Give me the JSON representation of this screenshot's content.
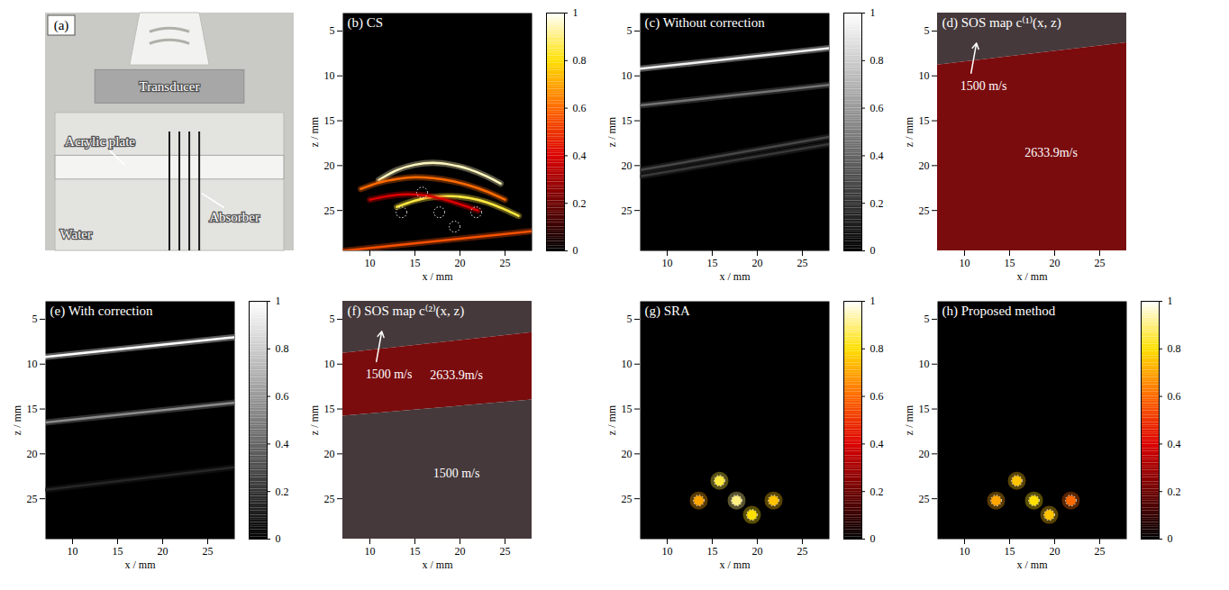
{
  "chart_data": [
    {
      "type": "photo",
      "label": "(a)",
      "annotations": [
        "Transducer",
        "Acrylic plate",
        "Water",
        "Absorber"
      ]
    },
    {
      "type": "heatmap",
      "label": "(b)",
      "title": "CS",
      "x_label": "x / mm",
      "y_label": "z / mm",
      "xlim": [
        7,
        28
      ],
      "xticks": [
        10,
        15,
        20,
        25
      ],
      "ylim": [
        3,
        29.5
      ],
      "yticks": [
        5,
        10,
        15,
        20,
        25
      ],
      "traces": [
        {
          "x": [
            11,
            13,
            15,
            17,
            19,
            21,
            23,
            24.5
          ],
          "z": [
            21.6,
            20.5,
            19.9,
            19.7,
            19.9,
            20.4,
            21.2,
            22
          ],
          "intensity": 0.95
        },
        {
          "x": [
            9,
            11,
            13,
            15,
            17,
            19,
            21,
            23,
            25
          ],
          "z": [
            22.6,
            21.9,
            21.5,
            21.3,
            21.4,
            21.7,
            22.2,
            22.9,
            23.8
          ],
          "intensity": 0.6
        },
        {
          "x": [
            13,
            15,
            17,
            19,
            21,
            23,
            25,
            26.5
          ],
          "z": [
            24.6,
            23.9,
            23.5,
            23.4,
            23.6,
            24.1,
            24.9,
            25.6
          ],
          "intensity": 0.85
        },
        {
          "x": [
            10,
            12,
            14,
            16,
            18,
            20,
            22
          ],
          "z": [
            23.8,
            23.4,
            23.2,
            23.3,
            23.7,
            24.3,
            25
          ],
          "intensity": 0.4
        },
        {
          "x": [
            7,
            28
          ],
          "z": [
            29.5,
            27.3
          ],
          "intensity": 0.55
        }
      ],
      "targets": {
        "x": [
          15.8,
          13.5,
          17.7,
          21.8,
          19.4
        ],
        "z": [
          23.0,
          25.2,
          25.2,
          25.2,
          26.8
        ]
      },
      "colorbar": {
        "range": [
          0,
          1
        ],
        "ticks": [
          0,
          0.2,
          0.4,
          0.6,
          0.8,
          1
        ],
        "colors": [
          "#000000",
          "#6e0000",
          "#dc0000",
          "#ff6a00",
          "#ffe000",
          "#ffffff"
        ]
      }
    },
    {
      "type": "heatmap",
      "label": "(c)",
      "title": "Without correction",
      "x_label": "x / mm",
      "y_label": "z / mm",
      "xlim": [
        7,
        28
      ],
      "xticks": [
        10,
        15,
        20,
        25
      ],
      "ylim": [
        3,
        29.5
      ],
      "yticks": [
        5,
        10,
        15,
        20,
        25
      ],
      "traces": [
        {
          "x": [
            7,
            28
          ],
          "z": [
            9.2,
            6.9
          ],
          "intensity": 0.95
        },
        {
          "x": [
            7,
            28
          ],
          "z": [
            13.3,
            11.0
          ],
          "intensity": 0.45
        },
        {
          "x": [
            7,
            28
          ],
          "z": [
            20.5,
            16.8
          ],
          "intensity": 0.28
        },
        {
          "x": [
            7,
            28
          ],
          "z": [
            21.2,
            17.6
          ],
          "intensity": 0.22
        }
      ],
      "colorbar": {
        "range": [
          0,
          1
        ],
        "ticks": [
          0,
          0.2,
          0.4,
          0.6,
          0.8,
          1
        ],
        "colors": [
          "#000000",
          "#ffffff"
        ]
      }
    },
    {
      "type": "region_map",
      "label": "(d)",
      "title": "SOS map c⁽¹⁾(x, z)",
      "x_label": "x / mm",
      "y_label": "z / mm",
      "xlim": [
        7,
        28
      ],
      "xticks": [
        10,
        15,
        20,
        25
      ],
      "ylim": [
        3,
        29.5
      ],
      "yticks": [
        5,
        10,
        15,
        20,
        25
      ],
      "layers": [
        {
          "label": "1500 m/s",
          "color": "#45393b",
          "top": [
            3,
            3
          ],
          "bottom": [
            8.8,
            6.3
          ]
        },
        {
          "label": "2633.9m/s",
          "color": "#7a0c0e",
          "top": [
            8.8,
            6.3
          ],
          "bottom": [
            29.5,
            29.5
          ]
        }
      ]
    },
    {
      "type": "heatmap",
      "label": "(e)",
      "title": "With correction",
      "x_label": "x / mm",
      "y_label": "z / mm",
      "xlim": [
        7,
        28
      ],
      "xticks": [
        10,
        15,
        20,
        25
      ],
      "ylim": [
        3,
        29.5
      ],
      "yticks": [
        5,
        10,
        15,
        20,
        25
      ],
      "traces": [
        {
          "x": [
            7,
            28
          ],
          "z": [
            9.2,
            7.0
          ],
          "intensity": 1.0
        },
        {
          "x": [
            7,
            28
          ],
          "z": [
            16.5,
            14.3
          ],
          "intensity": 0.55
        },
        {
          "x": [
            7,
            28
          ],
          "z": [
            24.0,
            21.5
          ],
          "intensity": 0.15
        }
      ],
      "colorbar": {
        "range": [
          0,
          1
        ],
        "ticks": [
          0,
          0.2,
          0.4,
          0.6,
          0.8,
          1
        ],
        "colors": [
          "#000000",
          "#ffffff"
        ]
      }
    },
    {
      "type": "region_map",
      "label": "(f)",
      "title": "SOS map c⁽²⁾(x, z)",
      "x_label": "x / mm",
      "y_label": "z / mm",
      "xlim": [
        7,
        28
      ],
      "xticks": [
        10,
        15,
        20,
        25
      ],
      "ylim": [
        3,
        29.5
      ],
      "yticks": [
        5,
        10,
        15,
        20,
        25
      ],
      "layers": [
        {
          "label": "1500 m/s",
          "color": "#45393b",
          "top": [
            3,
            3
          ],
          "bottom": [
            8.8,
            6.5
          ]
        },
        {
          "label": "2633.9m/s",
          "color": "#7a0c0e",
          "top": [
            8.8,
            6.5
          ],
          "bottom": [
            15.8,
            14.0
          ]
        },
        {
          "label": "1500 m/s",
          "color": "#45393b",
          "top": [
            15.8,
            14.0
          ],
          "bottom": [
            29.5,
            29.5
          ]
        }
      ]
    },
    {
      "type": "heatmap",
      "label": "(g)",
      "title": "SRA",
      "x_label": "x / mm",
      "y_label": "z / mm",
      "xlim": [
        7,
        28
      ],
      "xticks": [
        10,
        15,
        20,
        25
      ],
      "ylim": [
        3,
        29.5
      ],
      "yticks": [
        5,
        10,
        15,
        20,
        25
      ],
      "spots": {
        "x": [
          15.8,
          13.5,
          17.7,
          21.8,
          19.4
        ],
        "z": [
          23.0,
          25.2,
          25.2,
          25.2,
          26.8
        ],
        "intensity": [
          0.85,
          0.7,
          0.9,
          0.75,
          0.8
        ]
      },
      "targets": {
        "x": [
          15.8,
          13.5,
          17.7,
          21.8,
          19.4
        ],
        "z": [
          23.0,
          25.2,
          25.2,
          25.2,
          26.8
        ]
      },
      "colorbar": {
        "range": [
          0,
          1
        ],
        "ticks": [
          0,
          0.2,
          0.4,
          0.6,
          0.8,
          1
        ],
        "colors": [
          "#000000",
          "#6e0000",
          "#dc0000",
          "#ff6a00",
          "#ffe000",
          "#ffffff"
        ]
      }
    },
    {
      "type": "heatmap",
      "label": "(h)",
      "title": "Proposed method",
      "x_label": "x / mm",
      "y_label": "z / mm",
      "xlim": [
        7,
        28
      ],
      "xticks": [
        10,
        15,
        20,
        25
      ],
      "ylim": [
        3,
        29.5
      ],
      "yticks": [
        5,
        10,
        15,
        20,
        25
      ],
      "spots": {
        "x": [
          15.8,
          13.5,
          17.7,
          21.8,
          19.4
        ],
        "z": [
          23.0,
          25.2,
          25.2,
          25.2,
          26.8
        ],
        "intensity": [
          0.75,
          0.7,
          0.8,
          0.6,
          0.75
        ]
      },
      "targets": {
        "x": [
          15.8,
          13.5,
          17.7,
          21.8,
          19.4
        ],
        "z": [
          23.0,
          25.2,
          25.2,
          25.2,
          26.8
        ]
      },
      "colorbar": {
        "range": [
          0,
          1
        ],
        "ticks": [
          0,
          0.2,
          0.4,
          0.6,
          0.8,
          1
        ],
        "colors": [
          "#000000",
          "#6e0000",
          "#dc0000",
          "#ff6a00",
          "#ffe000",
          "#ffffff"
        ]
      }
    }
  ]
}
